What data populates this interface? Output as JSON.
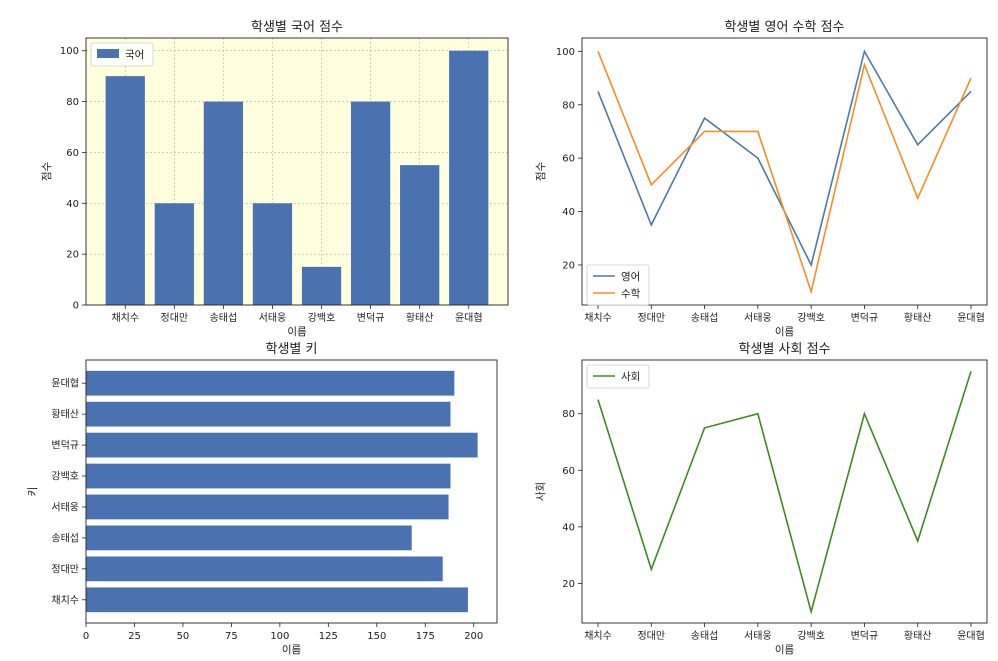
{
  "chart_data": [
    {
      "type": "bar",
      "title": "학생별 국어 점수",
      "xlabel": "이름",
      "ylabel": "점수",
      "categories": [
        "채치수",
        "정대만",
        "송태섭",
        "서태웅",
        "강백호",
        "변덕규",
        "황태산",
        "윤대협"
      ],
      "series": [
        {
          "name": "국어",
          "values": [
            90,
            40,
            80,
            40,
            15,
            80,
            55,
            100
          ],
          "color": "#4a72b0"
        }
      ],
      "ylim": [
        0,
        105
      ],
      "yticks": [
        0,
        20,
        40,
        60,
        80,
        100
      ],
      "grid": true,
      "background": "#ffffe0",
      "legend": "top-left"
    },
    {
      "type": "line",
      "title": "학생별 영어 수학 점수",
      "xlabel": "이름",
      "ylabel": "점수",
      "categories": [
        "채치수",
        "정대만",
        "송태섭",
        "서태웅",
        "강백호",
        "변덕규",
        "황태산",
        "윤대협"
      ],
      "series": [
        {
          "name": "영어",
          "values": [
            85,
            35,
            75,
            60,
            20,
            100,
            65,
            85
          ],
          "color": "#4e79a7"
        },
        {
          "name": "수학",
          "values": [
            100,
            50,
            70,
            70,
            10,
            95,
            45,
            90
          ],
          "color": "#f28e2b"
        }
      ],
      "ylim": [
        5,
        105
      ],
      "yticks": [
        20,
        40,
        60,
        80,
        100
      ],
      "grid": false,
      "legend": "bottom-left"
    },
    {
      "type": "bar",
      "orientation": "horizontal",
      "title": "학생별 키",
      "xlabel": "이름",
      "ylabel": "키",
      "categories": [
        "채치수",
        "정대만",
        "송태섭",
        "서태웅",
        "강백호",
        "변덕규",
        "황태산",
        "윤대협"
      ],
      "series": [
        {
          "values": [
            197,
            184,
            168,
            187,
            188,
            202,
            188,
            190
          ],
          "color": "#4a72b0"
        }
      ],
      "xlim": [
        0,
        212
      ],
      "xticks": [
        0,
        25,
        50,
        75,
        100,
        125,
        150,
        175,
        200
      ],
      "grid": false
    },
    {
      "type": "line",
      "title": "학생별 사회 점수",
      "xlabel": "이름",
      "ylabel": "사회",
      "categories": [
        "채치수",
        "정대만",
        "송태섭",
        "서태웅",
        "강백호",
        "변덕규",
        "황태산",
        "윤대협"
      ],
      "series": [
        {
          "name": "사회",
          "values": [
            85,
            25,
            75,
            80,
            10,
            80,
            35,
            95
          ],
          "color": "#3d8b25"
        }
      ],
      "ylim": [
        6,
        99
      ],
      "yticks": [
        20,
        40,
        60,
        80
      ],
      "grid": false,
      "legend": "top-left"
    }
  ]
}
